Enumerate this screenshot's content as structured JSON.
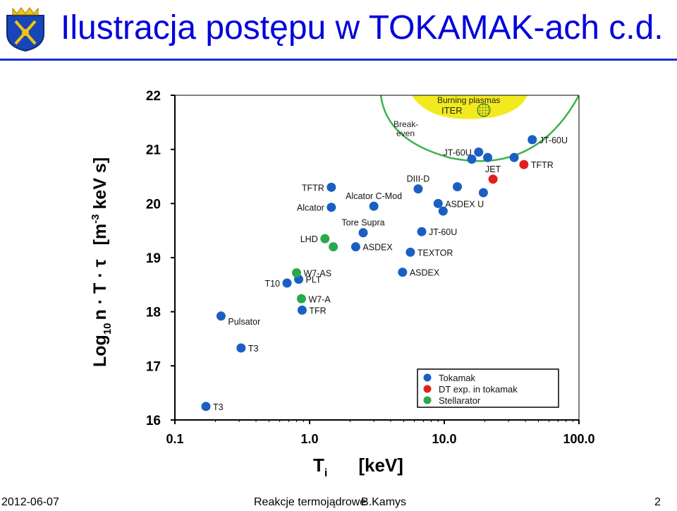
{
  "slide": {
    "title": "Ilustracja postępu w TOKAMAK-ach c.d.",
    "footer": {
      "date": "2012-06-07",
      "topic": "Reakcje termojądrowe",
      "author": "B.Kamys",
      "page": "2"
    }
  },
  "colors": {
    "tokamak": "#1a5fc2",
    "dt": "#e02020",
    "stellarator": "#2aa84a",
    "title": "#0000dd",
    "rule": "#1a2bd6",
    "burning": "#f2ea1e",
    "breakeven": "#3cb34a"
  },
  "chart_data": {
    "type": "scatter",
    "xscale": "log",
    "xlim": [
      0.1,
      100
    ],
    "ylim": [
      16,
      22
    ],
    "xticks": [
      0.1,
      1,
      10,
      100
    ],
    "xtick_labels": [
      "0.1",
      "1.0",
      "10.0",
      "100.0"
    ],
    "yticks": [
      16,
      17,
      18,
      19,
      20,
      21,
      22
    ],
    "ytick_labels": [
      "16",
      "17",
      "18",
      "19",
      "20",
      "21",
      "22"
    ],
    "xlabel": "T",
    "xlabel_sub": "i",
    "xlabel_unit": "[keV]",
    "ylabel_log": "Log",
    "ylabel_sub": "10",
    "ylabel_rest": "n · T · τ",
    "ylabel_unit": "[m",
    "ylabel_exp": "-3",
    "ylabel_unit_rest": " keV s]",
    "region_labels": {
      "burning": "Burning plasmas",
      "iter": "ITER",
      "breakeven_line1": "Break-",
      "breakeven_line2": "even"
    },
    "legend": [
      {
        "name": "Tokamak",
        "series": "tokamak"
      },
      {
        "name": "DT exp. in tokamak",
        "series": "dt"
      },
      {
        "name": "Stellarator",
        "series": "stellarator"
      }
    ],
    "series": [
      {
        "name": "Tokamak",
        "key": "tokamak",
        "points": [
          {
            "label": "T3",
            "x": 0.17,
            "y": 16.25,
            "lpos": "right"
          },
          {
            "label": "T3",
            "x": 0.31,
            "y": 17.33,
            "lpos": "right"
          },
          {
            "label": "Pulsator",
            "x": 0.22,
            "y": 17.92,
            "lpos": "below-right"
          },
          {
            "label": "TFR",
            "x": 0.88,
            "y": 18.03,
            "lpos": "right"
          },
          {
            "label": "T10",
            "x": 0.68,
            "y": 18.53,
            "lpos": "left"
          },
          {
            "label": "PLT",
            "x": 0.83,
            "y": 18.6,
            "lpos": "right"
          },
          {
            "label": "ASDEX",
            "x": 2.2,
            "y": 19.2,
            "lpos": "right"
          },
          {
            "label": "Tore Supra",
            "x": 2.5,
            "y": 19.46,
            "lpos": "above"
          },
          {
            "label": "Alcator",
            "x": 1.45,
            "y": 19.93,
            "lpos": "left"
          },
          {
            "label": "Alcator C-Mod",
            "x": 3.0,
            "y": 19.95,
            "lpos": "above"
          },
          {
            "label": "TFTR",
            "x": 1.45,
            "y": 20.3,
            "lpos": "left"
          },
          {
            "label": "ASDEX",
            "x": 4.9,
            "y": 18.73,
            "lpos": "right"
          },
          {
            "label": "TEXTOR",
            "x": 5.6,
            "y": 19.1,
            "lpos": "right"
          },
          {
            "label": "JT-60U",
            "x": 6.8,
            "y": 19.48,
            "lpos": "right"
          },
          {
            "label": "DIII-D",
            "x": 6.4,
            "y": 20.27,
            "lpos": "above"
          },
          {
            "label": "ASDEX U",
            "x": 9.0,
            "y": 20.0,
            "lpos": "right"
          },
          {
            "label": "",
            "x": 9.8,
            "y": 19.86,
            "lpos": "none"
          },
          {
            "label": "",
            "x": 12.5,
            "y": 20.31,
            "lpos": "none"
          },
          {
            "label": "",
            "x": 19.5,
            "y": 20.2,
            "lpos": "none"
          },
          {
            "label": "JT-60U",
            "x": 18.0,
            "y": 20.95,
            "lpos": "left"
          },
          {
            "label": "",
            "x": 16.0,
            "y": 20.82,
            "lpos": "none"
          },
          {
            "label": "",
            "x": 21.0,
            "y": 20.85,
            "lpos": "none"
          },
          {
            "label": "",
            "x": 33.0,
            "y": 20.85,
            "lpos": "none"
          },
          {
            "label": "JT-60U",
            "x": 45.0,
            "y": 21.18,
            "lpos": "right"
          }
        ]
      },
      {
        "name": "DT exp. in tokamak",
        "key": "dt",
        "points": [
          {
            "label": "JET",
            "x": 23.0,
            "y": 20.45,
            "lpos": "above"
          },
          {
            "label": "TFTR",
            "x": 39.0,
            "y": 20.72,
            "lpos": "right"
          }
        ]
      },
      {
        "name": "Stellarator",
        "key": "stellarator",
        "points": [
          {
            "label": "W7-AS",
            "x": 0.8,
            "y": 18.72,
            "lpos": "right"
          },
          {
            "label": "W7-A",
            "x": 0.87,
            "y": 18.24,
            "lpos": "right"
          },
          {
            "label": "LHD",
            "x": 1.3,
            "y": 19.35,
            "lpos": "left"
          },
          {
            "label": "",
            "x": 1.5,
            "y": 19.2,
            "lpos": "none"
          }
        ]
      }
    ]
  }
}
